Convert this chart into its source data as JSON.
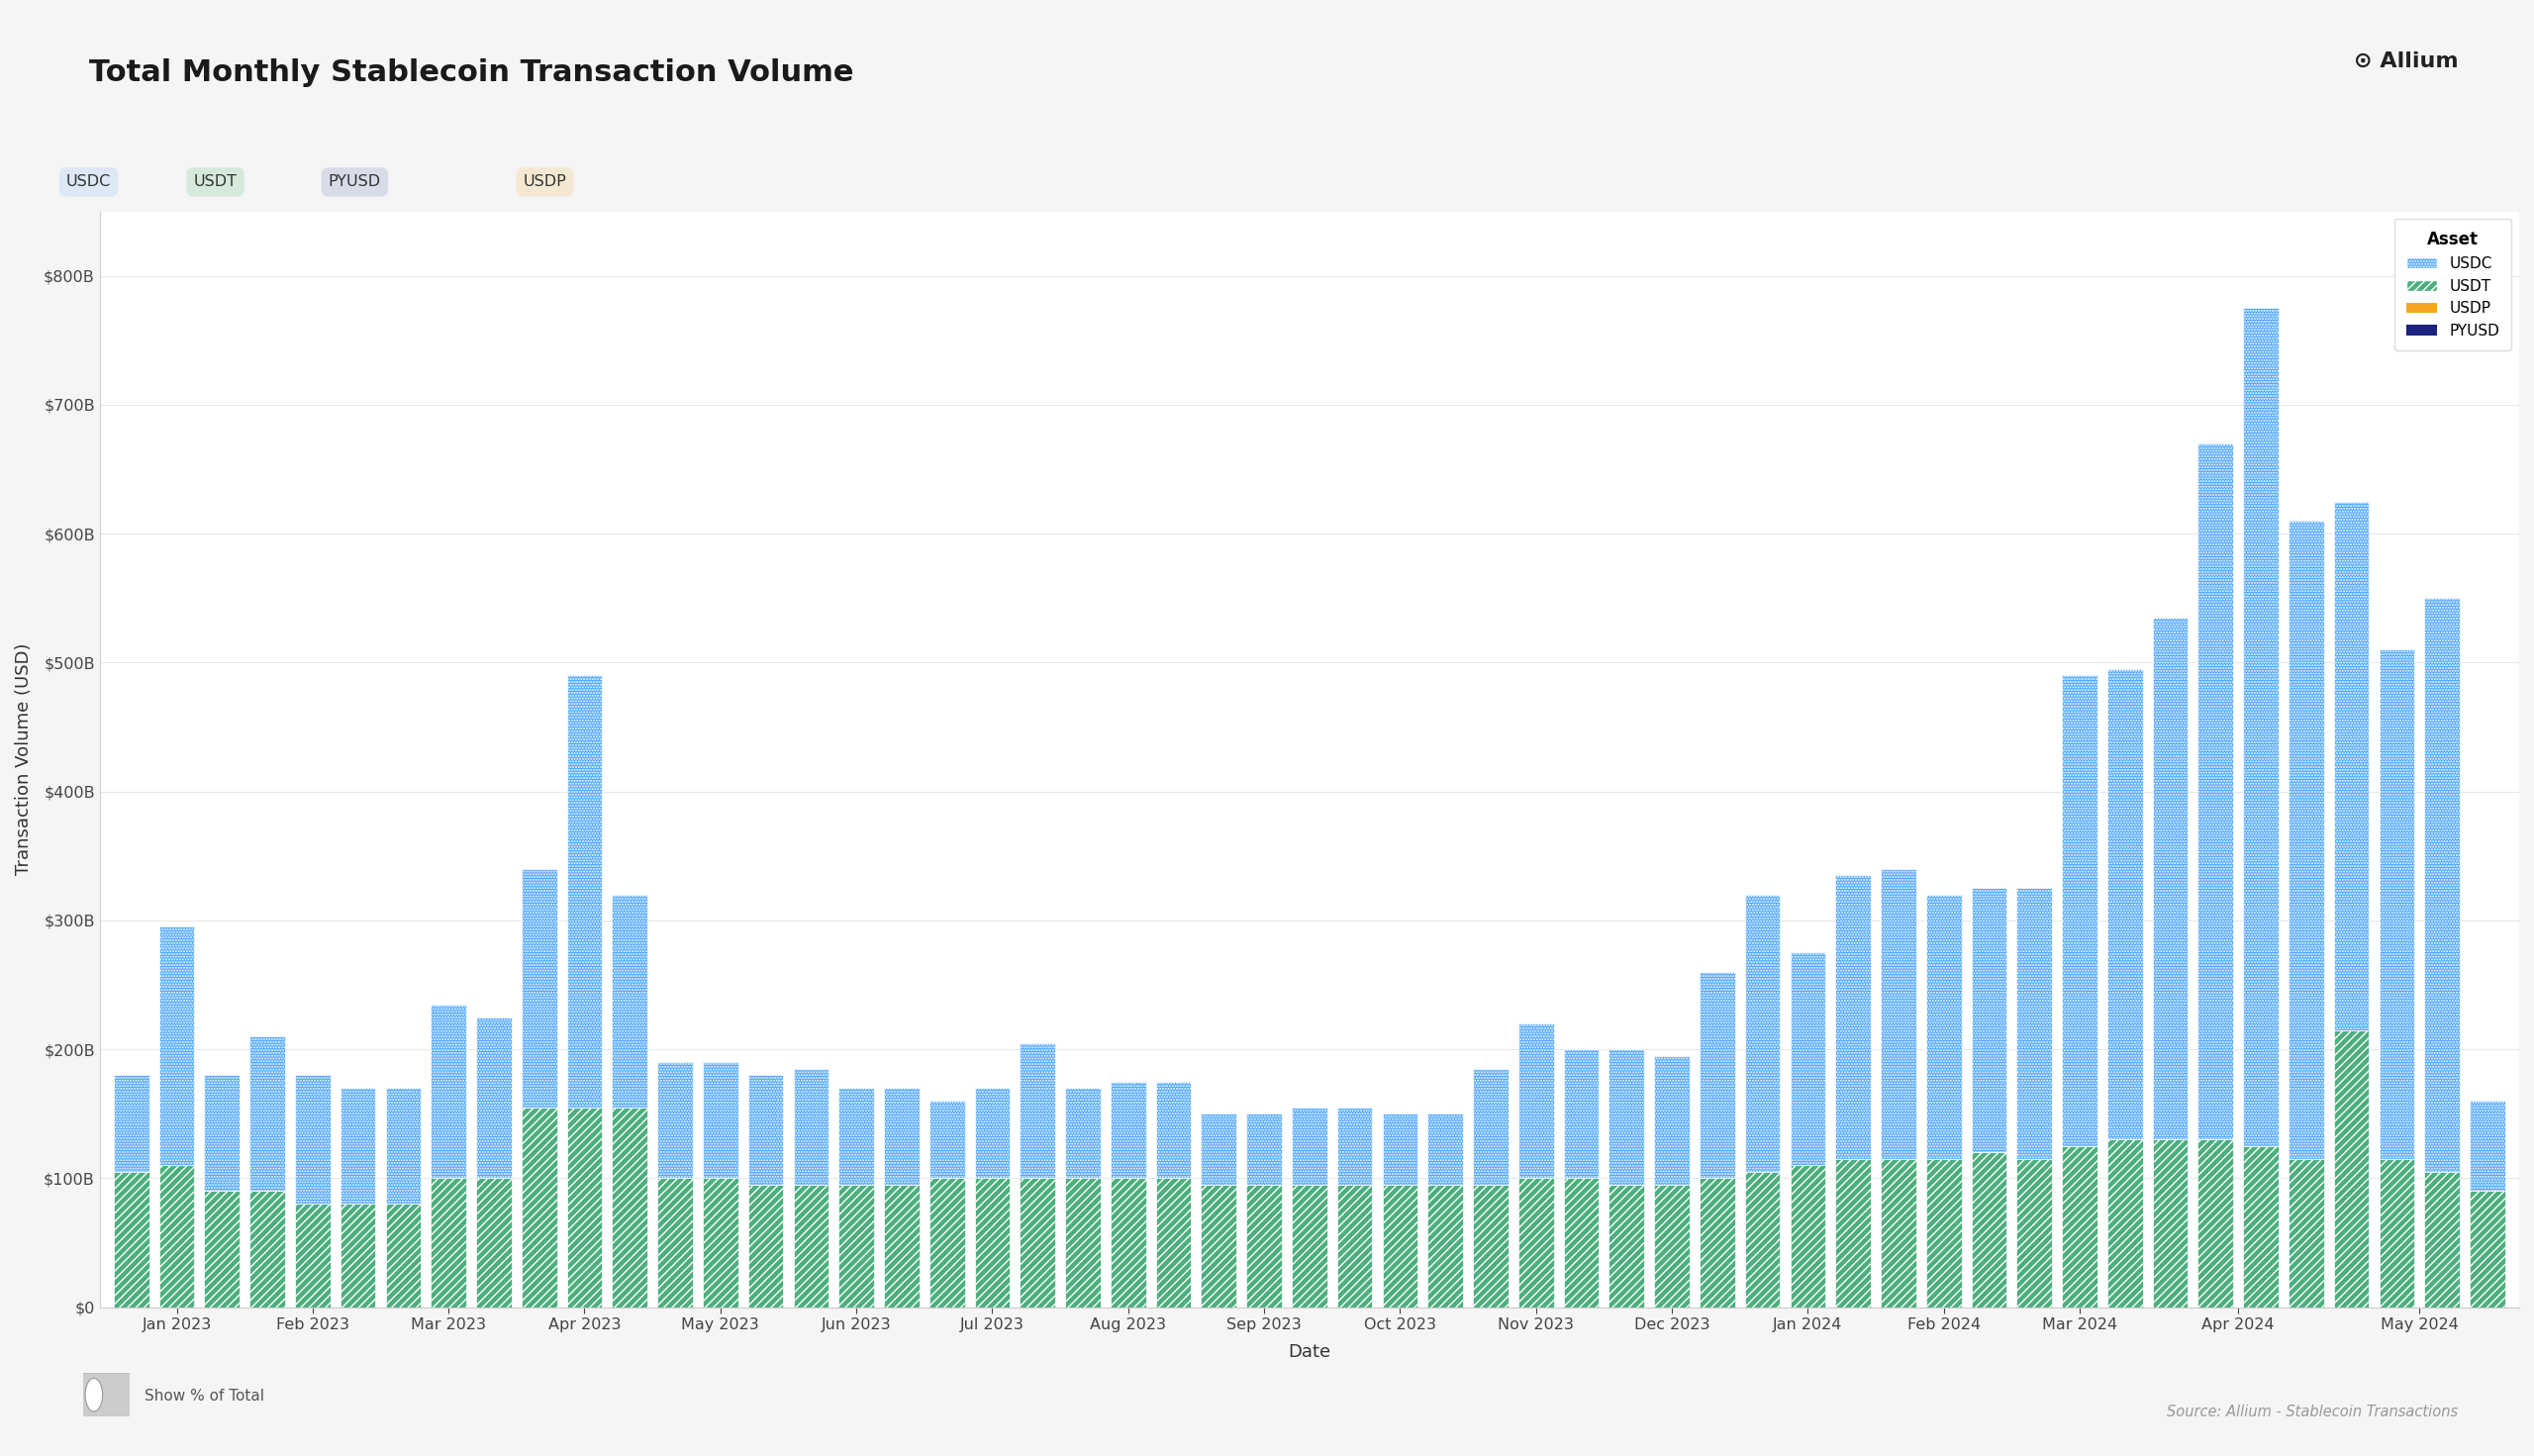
{
  "title": "Total Monthly Stablecoin Transaction Volume",
  "xlabel": "Date",
  "ylabel": "Transaction Volume (USD)",
  "source": "Source: Allium - Stablecoin Transactions",
  "background_color": "#f5f5f5",
  "plot_bg_color": "#ffffff",
  "usdc_color": "#4da6ff",
  "usdt_color": "#4caf7d",
  "usdp_color": "#f5a623",
  "pyusd_color": "#1a237e",
  "ylim_max": 850000000000,
  "yticks": [
    0,
    100000000000,
    200000000000,
    300000000000,
    400000000000,
    500000000000,
    600000000000,
    700000000000,
    800000000000
  ],
  "month_labels": [
    "Jan 2023",
    "Feb 2023",
    "Mar 2023",
    "Apr 2023",
    "May 2023",
    "Jun 2023",
    "Jul 2023",
    "Aug 2023",
    "Sep 2023",
    "Oct 2023",
    "Nov 2023",
    "Dec 2023",
    "Jan 2024",
    "Feb 2024",
    "Mar 2024",
    "Apr 2024",
    "May 2024"
  ],
  "btn_labels": [
    "USDC",
    "USDT",
    "PYUSD",
    "USDP"
  ],
  "btn_colors": [
    "#dce8f5",
    "#d5eadb",
    "#d8dce8",
    "#f5e8d2"
  ],
  "legend_order": [
    "USDC",
    "USDT",
    "USDP",
    "PYUSD"
  ],
  "usdc_vals": [
    75000000000,
    185000000000,
    90000000000,
    120000000000,
    100000000000,
    90000000000,
    90000000000,
    135000000000,
    125000000000,
    185000000000,
    335000000000,
    165000000000,
    90000000000,
    90000000000,
    85000000000,
    90000000000,
    75000000000,
    75000000000,
    60000000000,
    70000000000,
    105000000000,
    70000000000,
    75000000000,
    75000000000,
    55000000000,
    55000000000,
    60000000000,
    60000000000,
    55000000000,
    55000000000,
    90000000000,
    120000000000,
    100000000000,
    105000000000,
    100000000000,
    160000000000,
    215000000000,
    165000000000,
    220000000000,
    225000000000,
    205000000000,
    205000000000,
    210000000000,
    365000000000,
    365000000000,
    405000000000,
    540000000000,
    650000000000,
    495000000000,
    410000000000,
    395000000000,
    445000000000,
    70000000000
  ],
  "usdt_vals": [
    105000000000,
    110000000000,
    90000000000,
    90000000000,
    80000000000,
    80000000000,
    80000000000,
    100000000000,
    100000000000,
    155000000000,
    155000000000,
    155000000000,
    100000000000,
    100000000000,
    95000000000,
    95000000000,
    95000000000,
    95000000000,
    100000000000,
    100000000000,
    100000000000,
    100000000000,
    100000000000,
    100000000000,
    95000000000,
    95000000000,
    95000000000,
    95000000000,
    95000000000,
    95000000000,
    95000000000,
    100000000000,
    100000000000,
    95000000000,
    95000000000,
    100000000000,
    105000000000,
    110000000000,
    115000000000,
    115000000000,
    115000000000,
    120000000000,
    115000000000,
    125000000000,
    130000000000,
    130000000000,
    130000000000,
    125000000000,
    115000000000,
    215000000000,
    115000000000,
    105000000000,
    90000000000
  ],
  "usdp_vals_flag": true,
  "pyusd_vals_flag": false
}
